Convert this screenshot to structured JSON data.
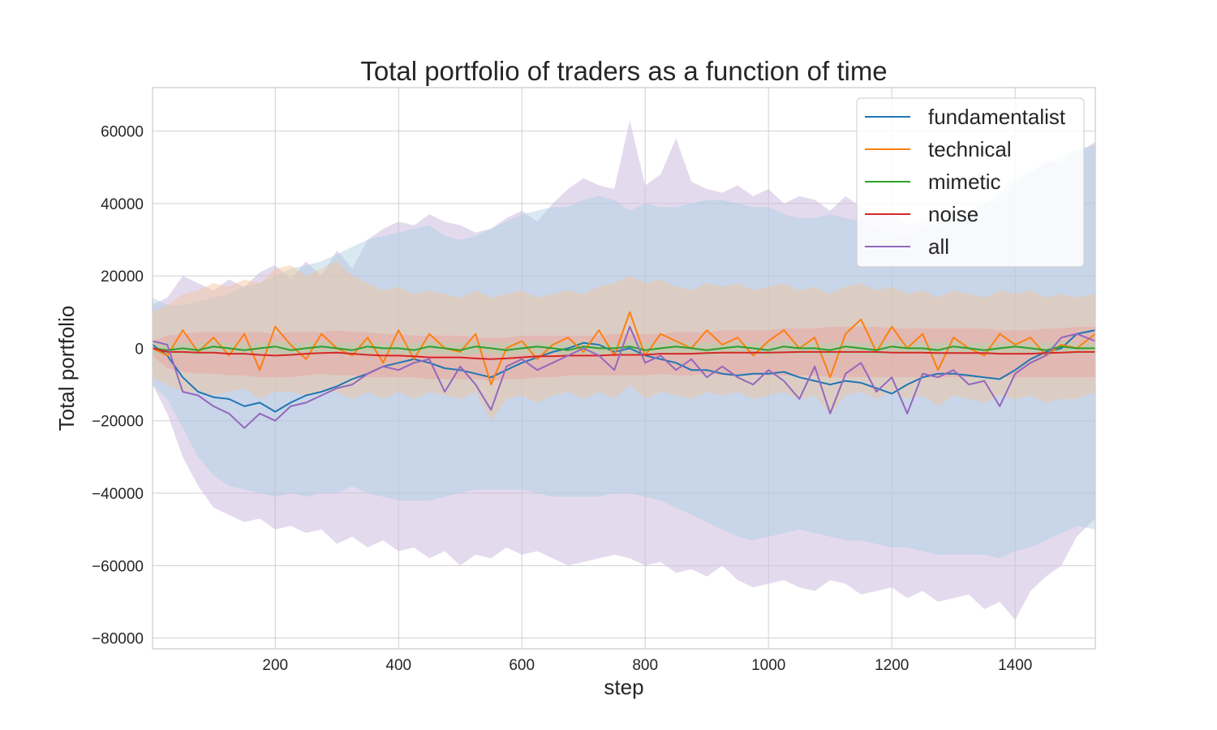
{
  "chart_data": {
    "type": "line",
    "title": "Total portfolio of traders as a function of time",
    "xlabel": "step",
    "ylabel": "Total portfolio",
    "xlim": [
      1,
      1530
    ],
    "ylim": [
      -83000,
      72000
    ],
    "xticks": [
      200,
      400,
      600,
      800,
      1000,
      1200,
      1400
    ],
    "yticks": [
      -80000,
      -60000,
      -40000,
      -20000,
      0,
      20000,
      40000,
      60000
    ],
    "grid": true,
    "legend_position": "top-right",
    "x": [
      1,
      25,
      50,
      75,
      100,
      125,
      150,
      175,
      200,
      225,
      250,
      275,
      300,
      325,
      350,
      375,
      400,
      425,
      450,
      475,
      500,
      525,
      550,
      575,
      600,
      625,
      650,
      675,
      700,
      725,
      750,
      775,
      800,
      825,
      850,
      875,
      900,
      925,
      950,
      975,
      1000,
      1025,
      1050,
      1075,
      1100,
      1125,
      1150,
      1175,
      1200,
      1225,
      1250,
      1275,
      1300,
      1325,
      1350,
      1375,
      1400,
      1425,
      1450,
      1475,
      1500,
      1530
    ],
    "series": [
      {
        "name": "fundamentalist",
        "color": "#1f77b4",
        "band_color": "#a9cfe0",
        "values": [
          1000,
          -2000,
          -8000,
          -12000,
          -13500,
          -14000,
          -16000,
          -15000,
          -17500,
          -15000,
          -13000,
          -12000,
          -10500,
          -8500,
          -7000,
          -5000,
          -4000,
          -3000,
          -4000,
          -5500,
          -6000,
          -7000,
          -8000,
          -6000,
          -4000,
          -2500,
          -1000,
          0,
          1500,
          1000,
          -1000,
          0,
          -2000,
          -3000,
          -4000,
          -6000,
          -6000,
          -7000,
          -7500,
          -7000,
          -7000,
          -6500,
          -8000,
          -9000,
          -10000,
          -9000,
          -9500,
          -11000,
          -12500,
          -10000,
          -8000,
          -7000,
          -7000,
          -7500,
          -8000,
          -8500,
          -6000,
          -3000,
          -1000,
          0,
          4000,
          5000
        ],
        "band_upper": [
          14000,
          12000,
          12000,
          13000,
          14000,
          15000,
          17000,
          18000,
          20000,
          22000,
          23000,
          24000,
          26000,
          28000,
          30000,
          31000,
          32000,
          33000,
          34000,
          31000,
          30000,
          31000,
          33000,
          35000,
          37000,
          38000,
          39000,
          39000,
          41000,
          42000,
          41000,
          38000,
          40000,
          39000,
          39000,
          40000,
          41000,
          41000,
          40000,
          39000,
          39000,
          37000,
          36000,
          36000,
          37000,
          36000,
          35000,
          33000,
          32000,
          31000,
          33000,
          35000,
          37000,
          38000,
          40000,
          43000,
          47000,
          49000,
          51000,
          53000,
          55000,
          56000
        ],
        "band_lower": [
          -10000,
          -14000,
          -22000,
          -30000,
          -35000,
          -38000,
          -39000,
          -40000,
          -41000,
          -40000,
          -41000,
          -40000,
          -40000,
          -38000,
          -40000,
          -41000,
          -42000,
          -42000,
          -42000,
          -41000,
          -40000,
          -39000,
          -39000,
          -39000,
          -39000,
          -40000,
          -41000,
          -41000,
          -41000,
          -41000,
          -40000,
          -40000,
          -41000,
          -42000,
          -44000,
          -46000,
          -48000,
          -50000,
          -52000,
          -53000,
          -52000,
          -51000,
          -50000,
          -51000,
          -52000,
          -53000,
          -53000,
          -54000,
          -55000,
          -55000,
          -56000,
          -57000,
          -57000,
          -57000,
          -57000,
          -58000,
          -56000,
          -55000,
          -53000,
          -51000,
          -49000,
          -50000
        ]
      },
      {
        "name": "technical",
        "color": "#ff7f0e",
        "band_color": "#f4c39a",
        "values": [
          0,
          -2000,
          5000,
          -1000,
          3000,
          -2000,
          4000,
          -6000,
          6000,
          1000,
          -3000,
          4000,
          0,
          -2000,
          3000,
          -4000,
          5000,
          -3000,
          4000,
          0,
          -1000,
          4000,
          -10000,
          0,
          2000,
          -3000,
          1000,
          3000,
          -1000,
          5000,
          -2000,
          10000,
          -2000,
          4000,
          2000,
          0,
          5000,
          1000,
          3000,
          -2000,
          2000,
          5000,
          0,
          3000,
          -8000,
          4000,
          8000,
          -1000,
          6000,
          0,
          4000,
          -6000,
          3000,
          0,
          -2000,
          4000,
          1000,
          3000,
          -2000,
          1000,
          0,
          4000
        ],
        "band_upper": [
          10000,
          12000,
          15000,
          16000,
          18000,
          17000,
          19000,
          18000,
          22000,
          23000,
          20000,
          22000,
          24000,
          20000,
          18000,
          16000,
          17000,
          15000,
          16000,
          15000,
          14000,
          16000,
          14000,
          15000,
          16000,
          14000,
          15000,
          16000,
          15000,
          17000,
          18000,
          20000,
          18000,
          19000,
          17000,
          16000,
          18000,
          17000,
          18000,
          16000,
          17000,
          18000,
          16000,
          17000,
          15000,
          17000,
          18000,
          16000,
          17000,
          15000,
          16000,
          14000,
          16000,
          15000,
          14000,
          16000,
          15000,
          16000,
          14000,
          15000,
          14000,
          15000
        ],
        "band_lower": [
          -8000,
          -10000,
          -12000,
          -12000,
          -13000,
          -12000,
          -11000,
          -14000,
          -12000,
          -12000,
          -13000,
          -12000,
          -12000,
          -14000,
          -12000,
          -14000,
          -12000,
          -14000,
          -12000,
          -13000,
          -14000,
          -12000,
          -20000,
          -14000,
          -13000,
          -15000,
          -13000,
          -12000,
          -14000,
          -12000,
          -14000,
          -10000,
          -14000,
          -12000,
          -13000,
          -14000,
          -12000,
          -13000,
          -12000,
          -14000,
          -13000,
          -12000,
          -14000,
          -13000,
          -18000,
          -13000,
          -12000,
          -14000,
          -12000,
          -14000,
          -13000,
          -16000,
          -13000,
          -14000,
          -15000,
          -13000,
          -14000,
          -13000,
          -15000,
          -14000,
          -14000,
          -12000
        ]
      },
      {
        "name": "mimetic",
        "color": "#2ca02c",
        "band_color": "#a8d8a8",
        "values": [
          0,
          -500,
          0,
          -500,
          500,
          0,
          -500,
          0,
          500,
          -500,
          0,
          500,
          0,
          -500,
          500,
          0,
          0,
          -500,
          500,
          0,
          -500,
          500,
          0,
          -500,
          0,
          500,
          0,
          -500,
          500,
          0,
          0,
          500,
          -500,
          0,
          500,
          0,
          -500,
          0,
          500,
          0,
          -500,
          500,
          0,
          0,
          -500,
          500,
          0,
          -500,
          500,
          0,
          0,
          -500,
          500,
          0,
          -500,
          0,
          500,
          0,
          -500,
          500,
          0,
          0
        ],
        "band_upper": [
          1500,
          1500,
          1500,
          1500,
          2000,
          1500,
          1500,
          1500,
          2000,
          1500,
          1500,
          2000,
          1500,
          1500,
          2000,
          1500,
          1500,
          1500,
          2000,
          1500,
          1500,
          2000,
          1500,
          1500,
          1500,
          2000,
          1500,
          1500,
          2000,
          1500,
          1500,
          2000,
          1500,
          1500,
          2000,
          1500,
          1500,
          1500,
          2000,
          1500,
          1500,
          2000,
          1500,
          1500,
          1500,
          2000,
          1500,
          1500,
          2000,
          1500,
          1500,
          1500,
          2000,
          1500,
          1500,
          1500,
          2000,
          1500,
          1500,
          2000,
          1500,
          1500
        ],
        "band_lower": [
          -1500,
          -2000,
          -1500,
          -2000,
          -1500,
          -1500,
          -2000,
          -1500,
          -1500,
          -2000,
          -1500,
          -1500,
          -1500,
          -2000,
          -1500,
          -1500,
          -1500,
          -2000,
          -1500,
          -1500,
          -2000,
          -1500,
          -1500,
          -2000,
          -1500,
          -1500,
          -1500,
          -2000,
          -1500,
          -1500,
          -1500,
          -1500,
          -2000,
          -1500,
          -1500,
          -1500,
          -2000,
          -1500,
          -1500,
          -1500,
          -2000,
          -1500,
          -1500,
          -1500,
          -2000,
          -1500,
          -1500,
          -2000,
          -1500,
          -1500,
          -1500,
          -2000,
          -1500,
          -1500,
          -2000,
          -1500,
          -1500,
          -1500,
          -2000,
          -1500,
          -1500,
          -1500
        ]
      },
      {
        "name": "noise",
        "color": "#d62728",
        "band_color": "#e8a0a0",
        "values": [
          0,
          -1000,
          -1000,
          -1200,
          -1200,
          -1500,
          -1500,
          -1800,
          -2000,
          -1800,
          -1500,
          -1300,
          -1200,
          -1500,
          -1800,
          -2000,
          -2000,
          -2200,
          -2500,
          -2500,
          -2500,
          -2800,
          -3000,
          -2800,
          -2500,
          -2200,
          -2200,
          -2000,
          -2000,
          -2000,
          -1800,
          -1800,
          -1800,
          -1500,
          -1500,
          -1500,
          -1300,
          -1200,
          -1200,
          -1200,
          -1200,
          -1100,
          -1000,
          -1000,
          -1000,
          -1000,
          -1000,
          -1000,
          -1200,
          -1200,
          -1200,
          -1300,
          -1300,
          -1300,
          -1300,
          -1500,
          -1500,
          -1500,
          -1300,
          -1200,
          -1000,
          -1000
        ],
        "band_upper": [
          2000,
          3500,
          4000,
          4500,
          4500,
          4500,
          4500,
          4500,
          4000,
          4500,
          4500,
          4500,
          5000,
          4500,
          4500,
          4000,
          4000,
          3500,
          3500,
          3500,
          3500,
          3000,
          3000,
          3000,
          3500,
          3500,
          3500,
          3500,
          3500,
          3500,
          4000,
          4000,
          4000,
          4000,
          4500,
          4500,
          4500,
          5000,
          5000,
          5000,
          5000,
          5500,
          5500,
          5500,
          6000,
          6000,
          6000,
          6000,
          5500,
          5500,
          5500,
          5500,
          5500,
          5500,
          5500,
          5000,
          5000,
          5000,
          5500,
          5500,
          6000,
          6000
        ],
        "band_lower": [
          -2000,
          -5500,
          -6500,
          -7000,
          -7000,
          -7500,
          -7500,
          -8000,
          -8000,
          -8000,
          -7500,
          -7000,
          -7500,
          -7500,
          -8000,
          -8000,
          -8000,
          -8000,
          -8500,
          -8500,
          -8500,
          -8500,
          -9000,
          -8500,
          -8500,
          -8000,
          -8000,
          -7500,
          -7500,
          -7500,
          -7500,
          -7500,
          -7500,
          -7000,
          -7500,
          -7500,
          -7000,
          -7500,
          -7500,
          -7500,
          -7500,
          -7500,
          -7500,
          -7500,
          -8000,
          -8000,
          -8000,
          -8000,
          -8000,
          -8000,
          -8000,
          -8000,
          -8000,
          -8000,
          -8000,
          -8000,
          -8000,
          -8000,
          -8000,
          -8000,
          -8000,
          -8000
        ]
      },
      {
        "name": "all",
        "color": "#9467bd",
        "band_color": "#cdbbe0",
        "values": [
          2000,
          1000,
          -12000,
          -13000,
          -16000,
          -18000,
          -22000,
          -18000,
          -20000,
          -16000,
          -15000,
          -13000,
          -11000,
          -10000,
          -7000,
          -5000,
          -6000,
          -4000,
          -3000,
          -12000,
          -5000,
          -10000,
          -17000,
          -5000,
          -3000,
          -6000,
          -4000,
          -2000,
          0,
          -2000,
          -6000,
          6000,
          -4000,
          -2000,
          -6000,
          -3000,
          -8000,
          -5000,
          -8000,
          -10000,
          -6000,
          -9000,
          -14000,
          -5000,
          -18000,
          -7000,
          -4000,
          -12000,
          -8000,
          -18000,
          -7000,
          -8000,
          -6000,
          -10000,
          -9000,
          -16000,
          -7000,
          -4000,
          -2000,
          3000,
          4000,
          2000
        ],
        "band_upper": [
          12000,
          14000,
          20000,
          18000,
          16000,
          19000,
          17000,
          21000,
          23000,
          19000,
          24000,
          20000,
          27000,
          22000,
          30000,
          33000,
          35000,
          34000,
          37000,
          35000,
          34000,
          32000,
          33000,
          36000,
          38000,
          35000,
          40000,
          44000,
          47000,
          45000,
          44000,
          63000,
          45000,
          48000,
          58000,
          46000,
          44000,
          43000,
          45000,
          42000,
          44000,
          40000,
          42000,
          41000,
          38000,
          42000,
          39000,
          37000,
          38000,
          34000,
          36000,
          33000,
          35000,
          36000,
          38000,
          40000,
          45000,
          48000,
          52000,
          50000,
          54000,
          57000
        ],
        "band_lower": [
          -10000,
          -18000,
          -30000,
          -38000,
          -44000,
          -46000,
          -48000,
          -47000,
          -50000,
          -49000,
          -51000,
          -50000,
          -54000,
          -52000,
          -55000,
          -53000,
          -56000,
          -55000,
          -58000,
          -56000,
          -60000,
          -57000,
          -58000,
          -55000,
          -57000,
          -56000,
          -58000,
          -60000,
          -59000,
          -58000,
          -57000,
          -58000,
          -60000,
          -59000,
          -62000,
          -61000,
          -63000,
          -60000,
          -64000,
          -66000,
          -65000,
          -64000,
          -66000,
          -67000,
          -64000,
          -65000,
          -68000,
          -67000,
          -66000,
          -69000,
          -67000,
          -70000,
          -69000,
          -68000,
          -72000,
          -70000,
          -75000,
          -67000,
          -63000,
          -60000,
          -52000,
          -47000
        ]
      }
    ]
  }
}
